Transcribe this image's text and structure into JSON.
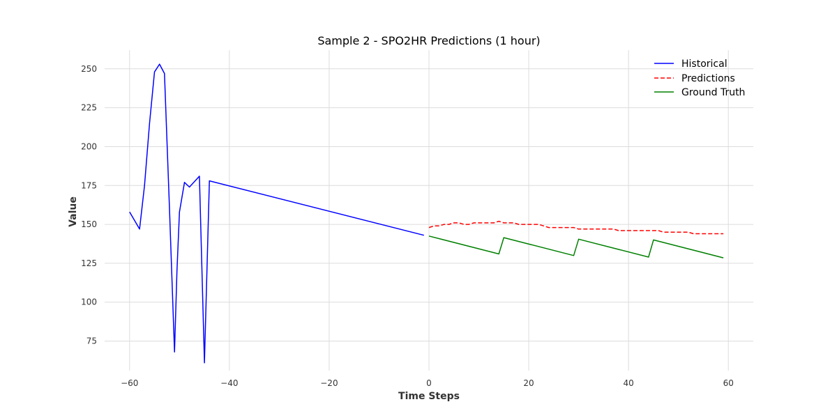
{
  "chart_data": {
    "type": "line",
    "title": "Sample 2 - SPO2HR Predictions (1 hour)",
    "xlabel": "Time Steps",
    "ylabel": "Value",
    "xlim": [
      -65,
      65
    ],
    "ylim": [
      56,
      262
    ],
    "xticks": [
      -60,
      -40,
      -20,
      0,
      20,
      40,
      60
    ],
    "yticks": [
      75,
      100,
      125,
      150,
      175,
      200,
      225,
      250
    ],
    "xtick_labels": [
      "−60",
      "−40",
      "−20",
      "0",
      "20",
      "40",
      "60"
    ],
    "ytick_labels": [
      "75",
      "100",
      "125",
      "150",
      "175",
      "200",
      "225",
      "250"
    ],
    "grid": true,
    "legend_position": "top-right",
    "series": [
      {
        "name": "Historical",
        "color": "#0000ff",
        "style": "solid",
        "x": [
          -60,
          -58,
          -57,
          -56,
          -55,
          -54,
          -53,
          -52,
          -51,
          -50.5,
          -50,
          -49,
          -48,
          -46,
          -45,
          -44,
          -1
        ],
        "y": [
          158,
          147,
          175,
          215,
          248,
          253,
          247,
          160,
          68,
          120,
          158,
          177,
          174,
          181,
          61,
          178,
          143
        ]
      },
      {
        "name": "Predictions",
        "color": "#ff0000",
        "style": "dashed",
        "x": [
          0,
          1,
          2,
          3,
          4,
          5,
          6,
          7,
          8,
          9,
          10,
          11,
          12,
          13,
          14,
          15,
          16,
          17,
          18,
          19,
          20,
          21,
          22,
          23,
          24,
          25,
          26,
          27,
          28,
          29,
          30,
          31,
          32,
          33,
          34,
          35,
          36,
          37,
          38,
          39,
          40,
          41,
          42,
          43,
          44,
          45,
          46,
          47,
          48,
          49,
          50,
          51,
          52,
          53,
          54,
          55,
          56,
          57,
          58,
          59
        ],
        "y": [
          148,
          149,
          149,
          150,
          150,
          151,
          151,
          150,
          150,
          151,
          151,
          151,
          151,
          151,
          152,
          151,
          151,
          151,
          150,
          150,
          150,
          150,
          150,
          149,
          148,
          148,
          148,
          148,
          148,
          148,
          147,
          147,
          147,
          147,
          147,
          147,
          147,
          147,
          146,
          146,
          146,
          146,
          146,
          146,
          146,
          146,
          146,
          145,
          145,
          145,
          145,
          145,
          145,
          144,
          144,
          144,
          144,
          144,
          144,
          144
        ]
      },
      {
        "name": "Ground Truth",
        "color": "#008000",
        "style": "solid",
        "x": [
          0,
          14,
          15,
          29,
          30,
          44,
          45,
          59
        ],
        "y": [
          142.5,
          131,
          141.5,
          130,
          140.5,
          129,
          140,
          128.5
        ]
      }
    ]
  }
}
